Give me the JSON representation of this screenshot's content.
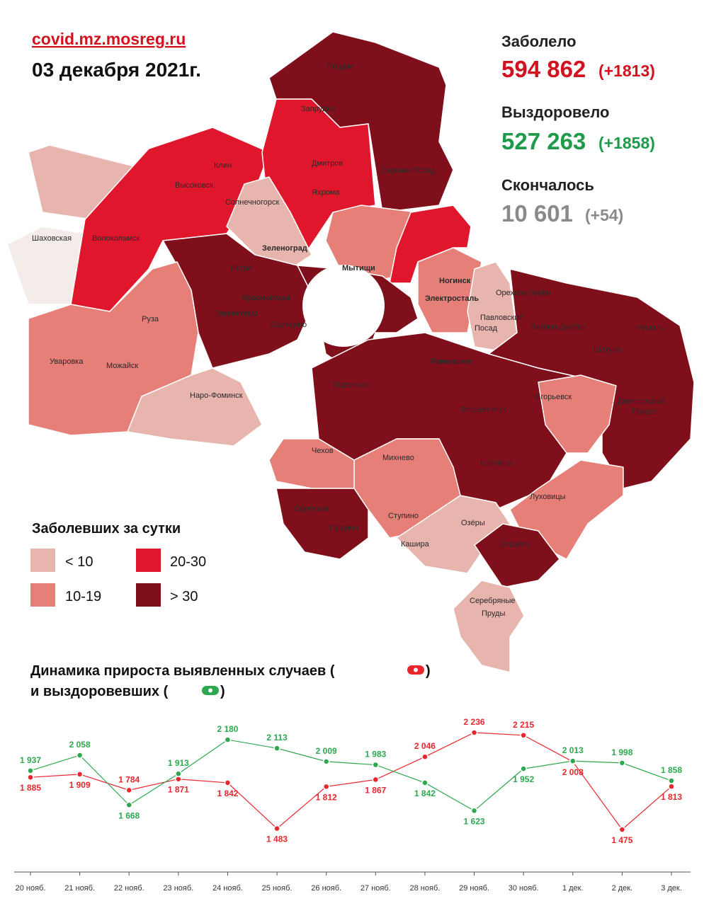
{
  "header": {
    "site": "covid.mz.mosreg.ru",
    "date": "03 декабря 2021г."
  },
  "stats": [
    {
      "label": "Заболело",
      "value": "594 862",
      "delta": "(+1813)"
    },
    {
      "label": "Выздоровело",
      "value": "527 263",
      "delta": "(+1858)"
    },
    {
      "label": "Скончалось",
      "value": "10 601",
      "delta": "(+54)"
    }
  ],
  "map": {
    "labels": [
      "Талдом",
      "Запрудня",
      "Дмитров",
      "Яхрома",
      "Сергиев Посад",
      "Клин",
      "Высоковск",
      "Солнечногорск",
      "Шаховская",
      "Волоколамск",
      "Зеленоград",
      "Истра",
      "Мытищи",
      "Ногинск",
      "Орехово-Зуево",
      "Красногорск",
      "Электросталь",
      "Звенигород",
      "Одинцово",
      "Павловский",
      "Посад",
      "Руза",
      "Ликино-Дулёво",
      "Рошаль",
      "Шатура",
      "Уваровка",
      "Можайск",
      "Раменское",
      "Подольск",
      "Наро-Фоминск",
      "Егорьевск",
      "Воскресенск",
      "Дмитровский",
      "Погост",
      "Чехов",
      "Михнево",
      "Коломна",
      "Луховицы",
      "Серпухов",
      "Пущино",
      "Ступино",
      "Озёры",
      "Кашира",
      "Зарайск",
      "Серебряные",
      "Пруды"
    ]
  },
  "legend": {
    "title": "Заболевших за сутки",
    "items": [
      "< 10",
      "20-30",
      "10-19",
      "> 30"
    ]
  },
  "chart_data": {
    "type": "line",
    "title_parts": [
      "Динамика прироста выявленных случаев (",
      ")",
      "и выздоровевших (",
      ")"
    ],
    "categories": [
      "20 нояб.",
      "21 нояб.",
      "22 нояб.",
      "23 нояб.",
      "24 нояб.",
      "25 нояб.",
      "26 нояб.",
      "27 нояб.",
      "28 нояб.",
      "29 нояб.",
      "30 нояб.",
      "1 дек.",
      "2 дек.",
      "3 дек."
    ],
    "series": [
      {
        "name": "выявленные случаи",
        "color": "#e8262d",
        "values": [
          1885,
          1909,
          1784,
          1871,
          1842,
          1483,
          1812,
          1867,
          2046,
          2236,
          2215,
          2008,
          1475,
          1813
        ],
        "value_labels": [
          "1 885",
          "1 909",
          "1 784",
          "1 871",
          "1 842",
          "1 483",
          "1 812",
          "1 867",
          "2 046",
          "2 236",
          "2 215",
          "2 008",
          "1 475",
          "1 813"
        ]
      },
      {
        "name": "выздоровевшие",
        "color": "#2ea84f",
        "values": [
          1937,
          2058,
          1668,
          1913,
          2180,
          2113,
          2009,
          1983,
          1842,
          1623,
          1952,
          2013,
          1998,
          1858
        ],
        "value_labels": [
          "1 937",
          "2 058",
          "1 668",
          "1 913",
          "2 180",
          "2 113",
          "2 009",
          "1 983",
          "1 842",
          "1 623",
          "1 952",
          "2 013",
          "1 998",
          "1 858"
        ]
      }
    ]
  }
}
